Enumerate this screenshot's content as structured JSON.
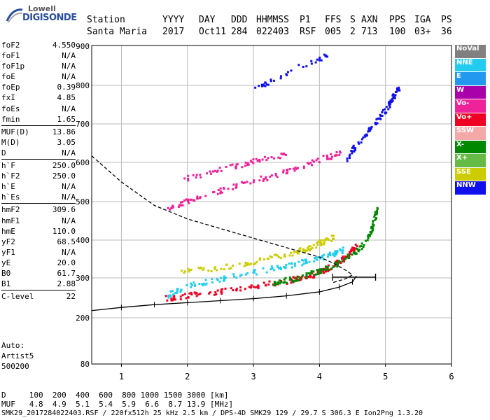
{
  "logo": {
    "line1": "Lowell",
    "line2": "DIGISONDE"
  },
  "header": {
    "labels": [
      "Station",
      "YYYY",
      "DAY",
      "DDD",
      "HHMMSS",
      "P1",
      "FFS",
      "S",
      "AXN",
      "PPS",
      "IGA",
      "PS"
    ],
    "values": [
      "Santa Maria",
      "2017",
      "Oct11",
      "284",
      "022403",
      "RSF",
      "005",
      "2",
      "713",
      "100",
      "03+",
      "36"
    ]
  },
  "params": [
    [
      [
        "foF2",
        "4.550"
      ],
      [
        "foF1",
        "N/A"
      ],
      [
        "foF1p",
        "N/A"
      ],
      [
        "foE",
        "N/A"
      ],
      [
        "foEp",
        "0.39"
      ],
      [
        "fxI",
        "4.85"
      ],
      [
        "foEs",
        "N/A"
      ],
      [
        "fmin",
        "1.65"
      ]
    ],
    [
      [
        "MUF(D)",
        "13.86"
      ],
      [
        "M(D)",
        "3.05"
      ],
      [
        "D",
        "N/A"
      ]
    ],
    [
      [
        "h`F",
        "250.0"
      ],
      [
        "h`F2",
        "250.0"
      ],
      [
        "h`E",
        "N/A"
      ],
      [
        "h`Es",
        "N/A"
      ]
    ],
    [
      [
        "hmF2",
        "309.6"
      ],
      [
        "hmF1",
        "N/A"
      ],
      [
        "hmE",
        "110.0"
      ],
      [
        "yF2",
        "68.5"
      ],
      [
        "yF1",
        "N/A"
      ],
      [
        "yE",
        "20.0"
      ],
      [
        "B0",
        "61.7"
      ],
      [
        "B1",
        "2.88"
      ]
    ],
    [
      [
        "C-level",
        "22"
      ]
    ]
  ],
  "auto": {
    "line1": "Auto:",
    "line2": "Artist5",
    "line3": "500200"
  },
  "footer": {
    "line1": "D     100  200  400  600  800 1000 1500 3000 [km]",
    "line2": "MUF   4.8  4.9  5.1  5.4  5.9  6.6  8.7 13.9 [MHz]",
    "line3": "SMK29_2017284022403.RSF / 220fx512h 25 kHz 2.5 km / DPS-4D SMK29 129 / 29.7 S 306.3 E Ion2Png 1.3.20"
  },
  "legend": [
    {
      "label": "NoVal",
      "color": "#808080"
    },
    {
      "label": "NNE",
      "color": "#22ccee"
    },
    {
      "label": "E",
      "color": "#2299ee"
    },
    {
      "label": "W",
      "color": "#aa00aa"
    },
    {
      "label": "Vo-",
      "color": "#ee2299"
    },
    {
      "label": "Vo+",
      "color": "#ee0022"
    },
    {
      "label": "SSW",
      "color": "#f4a8a8"
    },
    {
      "label": "X-",
      "color": "#008800"
    },
    {
      "label": "X+",
      "color": "#66bb44"
    },
    {
      "label": "SSE",
      "color": "#cccc00"
    },
    {
      "label": "NNW",
      "color": "#1010ee"
    }
  ],
  "chart_data": {
    "type": "scatter",
    "xlim": [
      0.55,
      6.0
    ],
    "ylim": [
      80,
      900
    ],
    "x_ticks": [
      "1",
      "2",
      "3",
      "4",
      "5",
      "6"
    ],
    "y_ticks": [
      "80",
      "200",
      "300",
      "400",
      "500",
      "600",
      "700",
      "800",
      "900"
    ],
    "grid": true,
    "legend_position": "right",
    "series": [
      {
        "color": "#ee0022",
        "points": [
          [
            1.65,
            250
          ],
          [
            2.0,
            257
          ],
          [
            2.5,
            268
          ],
          [
            3.0,
            280
          ],
          [
            3.5,
            295
          ],
          [
            3.8,
            305
          ],
          [
            4.0,
            318
          ],
          [
            4.2,
            335
          ],
          [
            4.4,
            360
          ],
          [
            4.55,
            385
          ]
        ]
      },
      {
        "color": "#008800",
        "points": [
          [
            3.3,
            290
          ],
          [
            3.6,
            300
          ],
          [
            3.9,
            315
          ],
          [
            4.2,
            335
          ],
          [
            4.5,
            365
          ],
          [
            4.7,
            400
          ],
          [
            4.8,
            440
          ],
          [
            4.85,
            480
          ]
        ]
      },
      {
        "color": "#cccc00",
        "points": [
          [
            1.9,
            318
          ],
          [
            2.5,
            330
          ],
          [
            3.0,
            345
          ],
          [
            3.5,
            365
          ],
          [
            3.8,
            380
          ],
          [
            4.0,
            395
          ],
          [
            4.2,
            410
          ]
        ]
      },
      {
        "color": "#22ccee",
        "points": [
          [
            1.7,
            260
          ],
          [
            2.0,
            282
          ],
          [
            2.5,
            300
          ],
          [
            3.0,
            318
          ],
          [
            3.5,
            335
          ],
          [
            3.9,
            350
          ],
          [
            4.2,
            365
          ],
          [
            4.35,
            378
          ]
        ]
      },
      {
        "color": "#ee2299",
        "points": [
          [
            1.7,
            485
          ],
          [
            2.0,
            505
          ],
          [
            2.5,
            530
          ],
          [
            3.0,
            555
          ],
          [
            3.5,
            580
          ],
          [
            4.0,
            610
          ],
          [
            4.3,
            625
          ],
          [
            1.95,
            560
          ],
          [
            2.5,
            585
          ],
          [
            3.0,
            605
          ],
          [
            3.5,
            625
          ]
        ]
      },
      {
        "color": "#1010ee",
        "points": [
          [
            4.4,
            610
          ],
          [
            4.6,
            660
          ],
          [
            4.8,
            700
          ],
          [
            5.0,
            740
          ],
          [
            5.1,
            770
          ],
          [
            5.2,
            800
          ],
          [
            3.0,
            790
          ],
          [
            3.5,
            835
          ],
          [
            4.2,
            885
          ]
        ]
      }
    ],
    "dashed_profile": [
      [
        0.55,
        617
      ],
      [
        1.0,
        550
      ],
      [
        1.5,
        490
      ],
      [
        2.0,
        455
      ],
      [
        2.5,
        430
      ],
      [
        3.0,
        405
      ],
      [
        3.5,
        380
      ],
      [
        4.0,
        355
      ],
      [
        4.2,
        340
      ],
      [
        4.4,
        320
      ],
      [
        4.5,
        308
      ],
      [
        4.4,
        298
      ],
      [
        4.2,
        288
      ]
    ],
    "trace_line": [
      [
        0.55,
        218
      ],
      [
        1.0,
        226
      ],
      [
        1.5,
        233
      ],
      [
        2.0,
        238
      ],
      [
        2.5,
        243
      ],
      [
        3.0,
        248
      ],
      [
        3.5,
        255
      ],
      [
        4.0,
        265
      ],
      [
        4.3,
        277
      ],
      [
        4.5,
        290
      ],
      [
        4.56,
        305
      ]
    ],
    "error_bar": {
      "x1": 4.2,
      "x2": 4.85,
      "y": 302
    }
  }
}
